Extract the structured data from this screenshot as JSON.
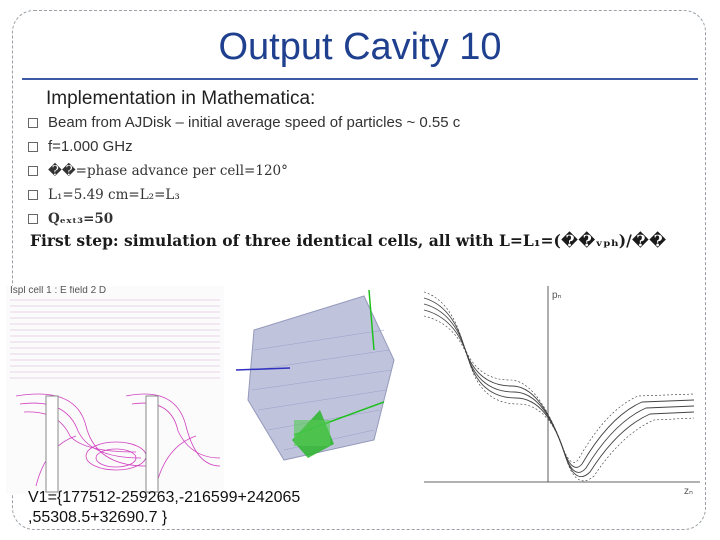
{
  "slide": {
    "title": "Output Cavity 10",
    "subheading": "Implementation in Mathematica:",
    "bullets": [
      "Beam from AJDisk – initial average speed of particles ~ 0.55 c",
      "f=1.000 GHz",
      "��=phase advance per cell=120°",
      "L₁=5.49 cm=L₂=L₃",
      "Qₑₓₜ₃=50"
    ],
    "first_step": "First step: simulation of three identical cells, all with L=L₁=(��ᵥₚₕ)/��",
    "v1_line1": "V1={177512-259263,-216599+242065",
    "v1_line2": ",55308.5+32690.7 }"
  },
  "figures": {
    "panel1_header": "Ispl cell 1 : E field 2 D",
    "panel3_ylabel": "pₙ",
    "panel3_xlabel": "zₙ"
  },
  "colors": {
    "title": "#1f3f8f",
    "rule": "#3c5aa6",
    "field_lines": "#d040c0",
    "arrow_green": "#20c020"
  }
}
